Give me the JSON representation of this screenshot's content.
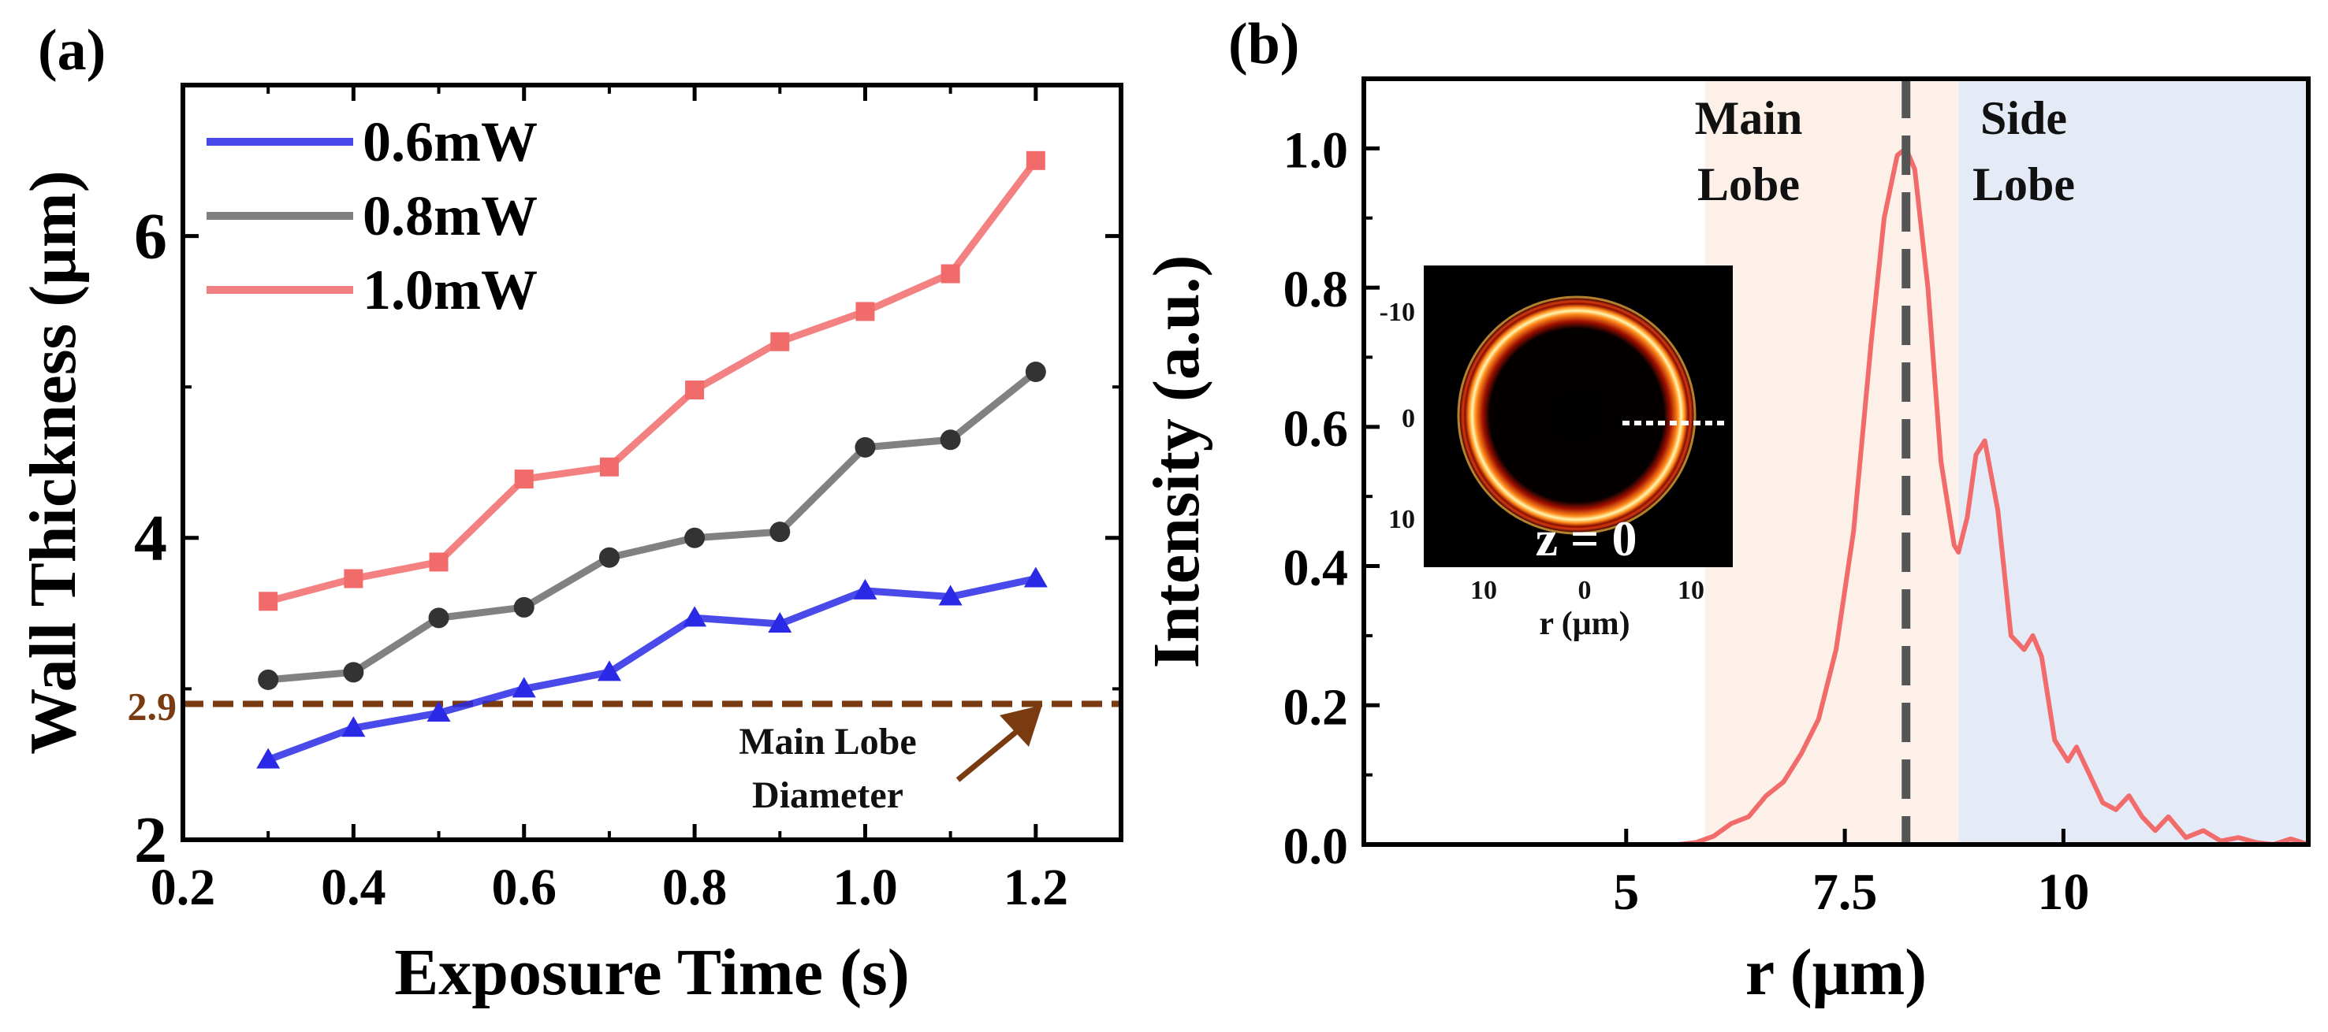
{
  "panel_a": {
    "label": "(a)",
    "annotation": {
      "reference_value": "2.9",
      "line1": "Main Lobe",
      "line2": "Diameter"
    }
  },
  "panel_b": {
    "label": "(b)",
    "regions": {
      "main_line1": "Main",
      "main_line2": "Lobe",
      "side_line1": "Side",
      "side_line2": "Lobe"
    },
    "inset": {
      "z_label": "z = 0",
      "xlabel": "r (μm)",
      "y_ticks": [
        "-10",
        "0",
        "10"
      ],
      "x_ticks": [
        "10",
        "0",
        "10"
      ]
    }
  },
  "colors": {
    "blue": "#2a2ae6",
    "gray": "#6b6b6b",
    "red": "#f26b6b",
    "brown": "#7a3b10",
    "main_region": "#fdf0e8",
    "side_region": "#e4eaf6"
  },
  "chart_data": [
    {
      "type": "line",
      "title": "",
      "xlabel": "Exposure Time (s)",
      "ylabel": "Wall Thickness (μm)",
      "xlim": [
        0.2,
        1.3
      ],
      "ylim": [
        2,
        7
      ],
      "xticks": [
        0.2,
        0.4,
        0.6,
        0.8,
        1.0,
        1.2
      ],
      "xtick_labels": [
        "0.2",
        "0.4",
        "0.6",
        "0.8",
        "1.0",
        "1.2"
      ],
      "yticks": [
        2,
        4,
        6
      ],
      "ytick_labels": [
        "2",
        "4",
        "6"
      ],
      "legend_position": "top-left",
      "x": [
        0.3,
        0.4,
        0.5,
        0.6,
        0.7,
        0.8,
        0.9,
        1.0,
        1.1,
        1.2
      ],
      "series": [
        {
          "name": "0.6mW",
          "marker": "triangle",
          "color": "#2a2ae6",
          "values": [
            2.53,
            2.74,
            2.84,
            3.0,
            3.11,
            3.47,
            3.43,
            3.65,
            3.61,
            3.73
          ]
        },
        {
          "name": "0.8mW",
          "marker": "circle",
          "color": "#6b6b6b",
          "values": [
            3.06,
            3.11,
            3.47,
            3.54,
            3.87,
            4.0,
            4.04,
            4.6,
            4.65,
            5.1
          ]
        },
        {
          "name": "1.0mW",
          "marker": "square",
          "color": "#f26b6b",
          "values": [
            3.58,
            3.73,
            3.84,
            4.39,
            4.47,
            4.98,
            5.3,
            5.5,
            5.75,
            6.5
          ]
        }
      ],
      "reference_line": {
        "y": 2.9,
        "label": "2.9",
        "style": "dashed"
      }
    },
    {
      "type": "line",
      "title": "",
      "xlabel": "r (μm)",
      "ylabel": "Intensity (a.u.)",
      "xlim": [
        2,
        12.8
      ],
      "ylim": [
        0,
        1.1
      ],
      "xticks": [
        5,
        7.5,
        10
      ],
      "xtick_labels": [
        "5",
        "7.5",
        "10"
      ],
      "yticks": [
        0,
        0.2,
        0.4,
        0.6,
        0.8,
        1.0
      ],
      "ytick_labels": [
        "0.0",
        "0.2",
        "0.4",
        "0.6",
        "0.8",
        "1.0"
      ],
      "series": [
        {
          "name": "intensity",
          "color": "#f26b6b",
          "x": [
            2.0,
            2.5,
            3.0,
            3.5,
            4.0,
            4.5,
            5.0,
            5.3,
            5.6,
            5.8,
            6.0,
            6.2,
            6.4,
            6.6,
            6.8,
            7.0,
            7.2,
            7.4,
            7.6,
            7.8,
            7.95,
            8.1,
            8.2,
            8.3,
            8.45,
            8.6,
            8.75,
            8.8,
            8.9,
            9.0,
            9.1,
            9.25,
            9.4,
            9.55,
            9.65,
            9.75,
            9.9,
            10.05,
            10.15,
            10.3,
            10.45,
            10.6,
            10.75,
            10.9,
            11.05,
            11.2,
            11.4,
            11.6,
            11.8,
            12.0,
            12.2,
            12.4,
            12.6,
            12.8
          ],
          "values": [
            0.0,
            0.0,
            0.0,
            0.0,
            0.0,
            0.0,
            0.0,
            0.0,
            0.0,
            0.003,
            0.012,
            0.03,
            0.04,
            0.07,
            0.09,
            0.13,
            0.18,
            0.28,
            0.45,
            0.72,
            0.9,
            0.99,
            1.0,
            0.97,
            0.8,
            0.55,
            0.43,
            0.42,
            0.47,
            0.56,
            0.58,
            0.48,
            0.3,
            0.28,
            0.3,
            0.27,
            0.15,
            0.12,
            0.14,
            0.1,
            0.06,
            0.05,
            0.07,
            0.04,
            0.02,
            0.04,
            0.01,
            0.02,
            0.005,
            0.01,
            0.003,
            0.0,
            0.008,
            0.0
          ]
        }
      ],
      "regions": [
        {
          "name": "Main Lobe",
          "x_range": [
            5.9,
            8.8
          ],
          "color": "#fdf0e8"
        },
        {
          "name": "Side Lobe",
          "x_range": [
            8.8,
            12.8
          ],
          "color": "#e4eaf6"
        }
      ],
      "vline": {
        "x": 8.2,
        "style": "dashed"
      }
    }
  ]
}
